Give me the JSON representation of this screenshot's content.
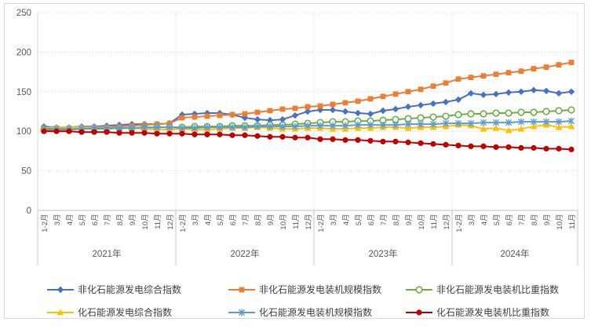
{
  "figure": {
    "frame_border_color": "#D9D9D9",
    "background": "#FFFFFF",
    "grid_color": "#D9D9D9",
    "axis_color": "#BFBFBF",
    "tick_label_color": "#595959"
  },
  "chart_data": {
    "type": "line",
    "title": "",
    "xlabel": "",
    "ylabel": "",
    "ylim": [
      0,
      250
    ],
    "y_ticks": [
      0,
      50,
      100,
      150,
      200,
      250
    ],
    "grid": "horizontal-dotted",
    "legend_position": "bottom",
    "categories": [
      "1-2月",
      "3月",
      "4月",
      "5月",
      "6月",
      "7月",
      "8月",
      "9月",
      "10月",
      "11月",
      "12月",
      "1-2月",
      "3月",
      "4月",
      "5月",
      "6月",
      "7月",
      "8月",
      "9月",
      "10月",
      "11月",
      "12月",
      "1-2月",
      "3月",
      "4月",
      "5月",
      "6月",
      "7月",
      "8月",
      "9月",
      "10月",
      "11月",
      "12月",
      "1-2月",
      "3月",
      "4月",
      "5月",
      "6月",
      "7月",
      "8月",
      "9月",
      "10月",
      "11月"
    ],
    "year_groups": [
      {
        "label": "2021年",
        "months": 11
      },
      {
        "label": "2022年",
        "months": 11
      },
      {
        "label": "2023年",
        "months": 11
      },
      {
        "label": "2024年",
        "months": 10
      }
    ],
    "series": [
      {
        "name": "非化石能源发电综合指数",
        "color": "#4472C4",
        "marker": "diamond",
        "values": [
          106,
          105,
          105,
          106,
          106,
          107,
          108,
          109,
          109,
          109,
          110,
          121,
          122,
          123,
          123,
          121,
          117,
          115,
          114,
          115,
          120,
          125,
          127,
          127,
          125,
          123,
          122,
          126,
          128,
          131,
          133,
          135,
          137,
          140,
          148,
          146,
          147,
          149,
          150,
          152,
          151,
          148,
          150
        ]
      },
      {
        "name": "非化石能源发电装机规模指数",
        "color": "#ED7D31",
        "marker": "square",
        "values": [
          101,
          102,
          102,
          103,
          104,
          105,
          106,
          107,
          108,
          109,
          110,
          117,
          118,
          119,
          120,
          121,
          122,
          124,
          126,
          128,
          129,
          131,
          132,
          134,
          136,
          138,
          141,
          144,
          147,
          150,
          153,
          157,
          161,
          166,
          168,
          170,
          172,
          174,
          176,
          179,
          181,
          184,
          187
        ]
      },
      {
        "name": "非化石能源发电装机比重指数",
        "color": "#70AD47",
        "marker": "circle-open",
        "values": [
          102,
          102,
          102,
          103,
          103,
          103,
          104,
          104,
          104,
          105,
          105,
          105,
          106,
          106,
          106,
          107,
          107,
          107,
          108,
          108,
          109,
          110,
          111,
          112,
          112,
          113,
          113,
          114,
          115,
          116,
          117,
          118,
          119,
          121,
          122,
          122,
          123,
          123,
          124,
          124,
          125,
          126,
          127
        ]
      },
      {
        "name": "化石能源发电综合指数",
        "color": "#FFC000",
        "marker": "triangle",
        "values": [
          104,
          105,
          105,
          105,
          105,
          105,
          104,
          104,
          103,
          102,
          102,
          103,
          102,
          102,
          103,
          104,
          104,
          105,
          104,
          103,
          103,
          104,
          104,
          103,
          103,
          104,
          104,
          105,
          105,
          104,
          105,
          105,
          106,
          108,
          107,
          103,
          104,
          101,
          103,
          106,
          108,
          105,
          106
        ]
      },
      {
        "name": "化石能源发电装机规模指数",
        "color": "#5B9BD5",
        "marker": "asterisk",
        "values": [
          103,
          103,
          103,
          103,
          104,
          104,
          104,
          104,
          105,
          105,
          105,
          104,
          104,
          105,
          105,
          105,
          105,
          106,
          106,
          106,
          106,
          107,
          107,
          107,
          107,
          108,
          108,
          108,
          108,
          109,
          109,
          109,
          110,
          110,
          110,
          111,
          111,
          111,
          112,
          112,
          112,
          112,
          113
        ]
      },
      {
        "name": "化石能源发电装机比重指数",
        "color": "#C00000",
        "marker": "circle",
        "values": [
          100,
          100,
          100,
          99,
          99,
          99,
          98,
          98,
          98,
          97,
          97,
          97,
          96,
          96,
          96,
          95,
          95,
          94,
          93,
          93,
          92,
          92,
          90,
          90,
          89,
          89,
          88,
          87,
          87,
          86,
          85,
          84,
          83,
          82,
          81,
          81,
          80,
          80,
          79,
          79,
          78,
          78,
          77
        ]
      }
    ]
  }
}
